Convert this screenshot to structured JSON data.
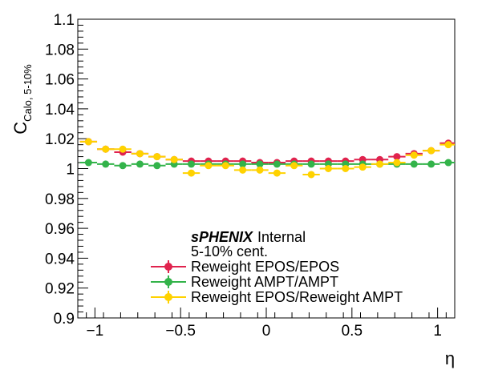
{
  "chart_data": {
    "type": "scatter",
    "xlabel": "η",
    "ylabel": "C",
    "ylabel_sub": "Calo, 5-10%",
    "xlim": [
      -1.1,
      1.1
    ],
    "ylim": [
      0.9,
      1.1
    ],
    "x_ticks": [
      -1,
      -0.5,
      0,
      0.5,
      1
    ],
    "x_tick_labels": [
      "−1",
      "−0.5",
      "0",
      "0.5",
      "1"
    ],
    "y_ticks": [
      0.9,
      0.92,
      0.94,
      0.96,
      0.98,
      1.0,
      1.02,
      1.04,
      1.06,
      1.08,
      1.1
    ],
    "y_tick_labels": [
      "0.9",
      "0.92",
      "0.94",
      "0.96",
      "0.98",
      "1",
      "1.02",
      "1.04",
      "1.06",
      "1.08",
      "1.1"
    ],
    "grid": false,
    "legend_position": "bottom-right",
    "annotation": {
      "experiment": "sPHENIX",
      "status": "Internal",
      "centrality": "5-10% cent."
    },
    "x": [
      -1.0375,
      -0.9375,
      -0.8375,
      -0.7375,
      -0.6375,
      -0.5375,
      -0.4375,
      -0.3375,
      -0.2375,
      -0.1375,
      -0.0375,
      0.0625,
      0.1625,
      0.2625,
      0.3625,
      0.4625,
      0.5625,
      0.6625,
      0.7625,
      0.8625,
      0.9625,
      1.0625
    ],
    "x_err": 0.05,
    "series": [
      {
        "name": "Reweight EPOS/EPOS",
        "color": "#e0234e",
        "values": [
          1.018,
          1.013,
          1.011,
          1.01,
          1.008,
          1.006,
          1.005,
          1.005,
          1.005,
          1.005,
          1.004,
          1.004,
          1.005,
          1.005,
          1.005,
          1.005,
          1.006,
          1.006,
          1.008,
          1.01,
          1.012,
          1.017
        ]
      },
      {
        "name": "Reweight AMPT/AMPT",
        "color": "#33b34a",
        "values": [
          1.004,
          1.003,
          1.002,
          1.003,
          1.002,
          1.003,
          1.003,
          1.003,
          1.003,
          1.003,
          1.003,
          1.003,
          1.003,
          1.003,
          1.003,
          1.003,
          1.003,
          1.003,
          1.003,
          1.003,
          1.003,
          1.004
        ]
      },
      {
        "name": "Reweight EPOS/Reweight AMPT",
        "color": "#ffd200",
        "values": [
          1.018,
          1.013,
          1.013,
          1.01,
          1.008,
          1.006,
          0.997,
          1.002,
          1.002,
          0.999,
          0.999,
          0.997,
          1.002,
          0.996,
          1.0,
          1.0,
          1.001,
          1.003,
          1.004,
          1.009,
          1.012,
          1.016
        ]
      }
    ]
  }
}
